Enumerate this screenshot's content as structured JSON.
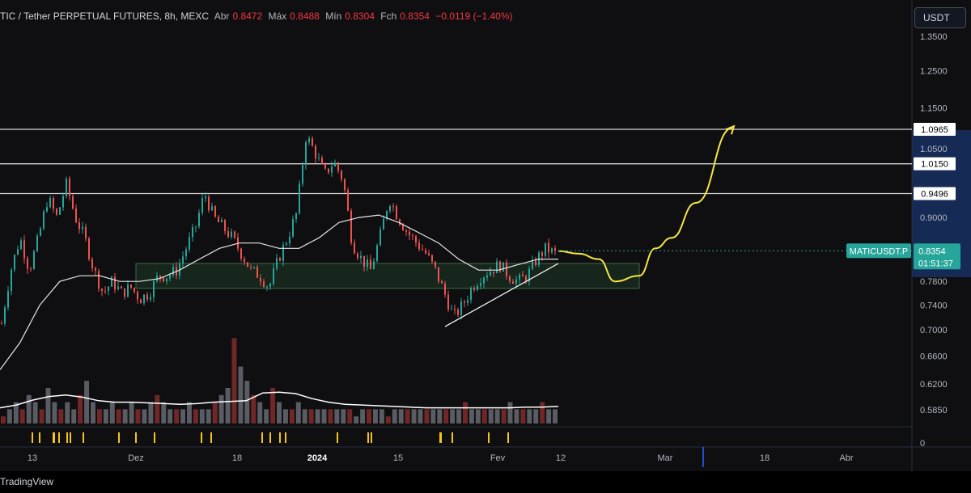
{
  "legend": {
    "symbol": "TIC / Tether PERPETUAL FUTURES, 8h, MEXC",
    "open_label": "Abr",
    "open_value": "0.8472",
    "high_label": "Máx",
    "high_value": "0.8488",
    "low_label": "Mín",
    "low_value": "0.8304",
    "close_label": "Fch",
    "close_value": "0.8354",
    "change": "−0.0119 (−1.40%)"
  },
  "axis_unit": "USDT",
  "branding": "TradingView",
  "colors": {
    "background": "#0f0f12",
    "up": "#26a69a",
    "down": "#ef5350",
    "projection": "#f5e642",
    "ma": "#e6e6e6",
    "zone": "#1e3a26",
    "current_price_tag": "#26a69a",
    "highlight_axis": "#152a55",
    "volume_marker": "#f5c518"
  },
  "chart_data": {
    "type": "candlestick",
    "symbol": "MATICUSDT.P",
    "timeframe": "8h",
    "exchange": "MEXC",
    "y_scale": "log",
    "ylim": [
      0.56,
      1.42
    ],
    "price_ticks": [
      1.35,
      1.25,
      1.15,
      1.05,
      0.9,
      0.78,
      0.74,
      0.7,
      0.66,
      0.62,
      0.585
    ],
    "volume_tick": "0",
    "x_ticks": [
      "13",
      "Dez",
      "18",
      "2024",
      "15",
      "Fev",
      "12",
      "Mar",
      "18",
      "Abr"
    ],
    "horizontal_levels": [
      {
        "label": "1.0965",
        "value": 1.0965
      },
      {
        "label": "1.0150",
        "value": 1.015
      },
      {
        "label": "0.9496",
        "value": 0.9496
      }
    ],
    "current_price": {
      "symbol_label": "MATICUSDT.P",
      "value_label": "0.8354",
      "value": 0.8354,
      "countdown": "01:51:37"
    },
    "demand_zone": {
      "price_low": 0.768,
      "price_high": 0.812
    },
    "price_path": [
      0.71,
      0.8,
      0.86,
      0.8,
      0.86,
      0.94,
      0.9,
      0.97,
      0.9,
      0.86,
      0.8,
      0.76,
      0.78,
      0.76,
      0.77,
      0.75,
      0.76,
      0.79,
      0.79,
      0.8,
      0.84,
      0.88,
      0.95,
      0.9,
      0.88,
      0.86,
      0.83,
      0.8,
      0.79,
      0.77,
      0.82,
      0.86,
      0.91,
      1.08,
      1.04,
      0.99,
      1.02,
      0.98,
      0.85,
      0.82,
      0.8,
      0.86,
      0.94,
      0.9,
      0.87,
      0.85,
      0.83,
      0.8,
      0.76,
      0.72,
      0.74,
      0.77,
      0.79,
      0.8,
      0.81,
      0.79,
      0.78,
      0.79,
      0.82,
      0.84,
      0.83
    ],
    "moving_average": [
      0.64,
      0.68,
      0.74,
      0.78,
      0.79,
      0.79,
      0.78,
      0.78,
      0.785,
      0.8,
      0.82,
      0.84,
      0.85,
      0.85,
      0.84,
      0.84,
      0.86,
      0.89,
      0.9,
      0.905,
      0.89,
      0.87,
      0.85,
      0.82,
      0.8,
      0.8,
      0.81,
      0.82,
      0.82
    ],
    "projection_path": [
      0.835,
      0.83,
      0.82,
      0.78,
      0.79,
      0.84,
      0.86,
      0.93,
      1.1
    ],
    "volume_bars": [
      1,
      2,
      3,
      2,
      4,
      3,
      2,
      5,
      3,
      2,
      3,
      2,
      4,
      6,
      3,
      2,
      2,
      3,
      2,
      2,
      3,
      2,
      2,
      3,
      4,
      3,
      2,
      2,
      2,
      3,
      2,
      2,
      2,
      3,
      4,
      5,
      12,
      8,
      6,
      4,
      3,
      2,
      5,
      3,
      2,
      2,
      3,
      2,
      2,
      2,
      2,
      2,
      2,
      2,
      2,
      1,
      2,
      2,
      2,
      2,
      1,
      2,
      2,
      2,
      2,
      2,
      2,
      2,
      2,
      2,
      2,
      2,
      3,
      2,
      2,
      2,
      2,
      2,
      2,
      3,
      2,
      2,
      2,
      2,
      3,
      2,
      2
    ],
    "volume_ma": [
      2.2,
      2.6,
      3.3,
      3.8,
      4.0,
      3.7,
      3.2,
      3.0,
      3.0,
      2.9,
      2.8,
      2.7,
      2.8,
      3.0,
      3.1,
      3.2,
      4.3,
      4.4,
      4.2,
      3.5,
      3.0,
      2.7,
      2.6,
      2.5,
      2.4,
      2.3,
      2.2,
      2.2,
      2.2,
      2.2,
      2.2,
      2.2,
      2.3,
      2.3,
      2.4
    ]
  }
}
